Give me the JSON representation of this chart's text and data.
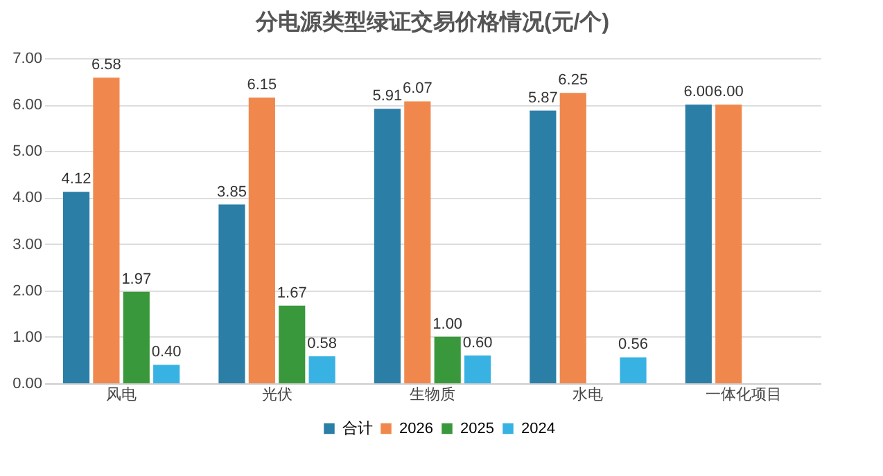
{
  "chart_data": {
    "type": "bar",
    "title": "分电源类型绿证交易价格情况(元/个)",
    "categories": [
      "风电",
      "光伏",
      "生物质",
      "水电",
      "一体化项目"
    ],
    "series": [
      {
        "name": "合计",
        "color": "#2b7ea6",
        "values": [
          4.12,
          3.85,
          5.91,
          5.87,
          6.0
        ],
        "value_labels": [
          "4.12",
          "3.85",
          "5.91",
          "5.87",
          "6.00"
        ]
      },
      {
        "name": "2026",
        "color": "#f0884e",
        "values": [
          6.58,
          6.15,
          6.07,
          6.25,
          6.0
        ],
        "value_labels": [
          "6.58",
          "6.15",
          "6.07",
          "6.25",
          "6.00"
        ]
      },
      {
        "name": "2025",
        "color": "#3a983c",
        "values": [
          1.97,
          1.67,
          1.0,
          null,
          null
        ],
        "value_labels": [
          "1.97",
          "1.67",
          "1.00",
          null,
          null
        ]
      },
      {
        "name": "2024",
        "color": "#38b2e3",
        "values": [
          0.4,
          0.58,
          0.6,
          0.56,
          null
        ],
        "value_labels": [
          "0.40",
          "0.58",
          "0.60",
          "0.56",
          null
        ]
      }
    ],
    "ylim": [
      0,
      7
    ],
    "yticks": [
      {
        "value": 0,
        "label": "0.00"
      },
      {
        "value": 1,
        "label": "1.00"
      },
      {
        "value": 2,
        "label": "2.00"
      },
      {
        "value": 3,
        "label": "3.00"
      },
      {
        "value": 4,
        "label": "4.00"
      },
      {
        "value": 5,
        "label": "5.00"
      },
      {
        "value": 6,
        "label": "6.00"
      },
      {
        "value": 7,
        "label": "7.00"
      }
    ],
    "grid": "y",
    "legend": "bottom"
  }
}
